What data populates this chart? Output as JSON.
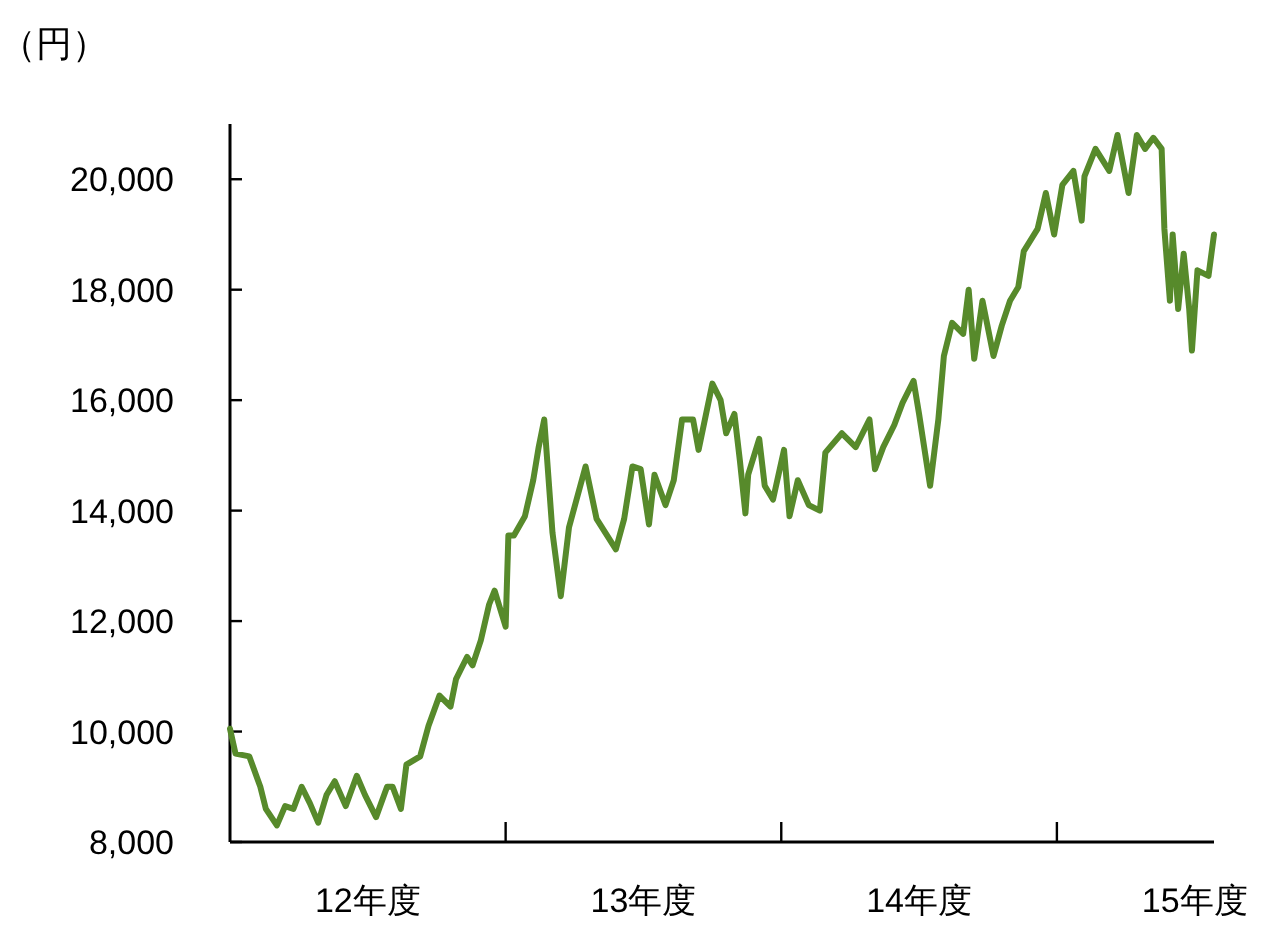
{
  "chart_data": {
    "type": "line",
    "ylabel": "（円）",
    "color": "#578a2b",
    "x": [
      12.0,
      12.02,
      12.07,
      12.11,
      12.13,
      12.17,
      12.2,
      12.23,
      12.26,
      12.29,
      12.32,
      12.35,
      12.38,
      12.42,
      12.46,
      12.49,
      12.53,
      12.57,
      12.59,
      12.62,
      12.64,
      12.69,
      12.72,
      12.76,
      12.8,
      12.82,
      12.86,
      12.88,
      12.91,
      12.94,
      12.96,
      13.0,
      13.01,
      13.03,
      13.07,
      13.1,
      13.12,
      13.14,
      13.17,
      13.2,
      13.23,
      13.29,
      13.33,
      13.4,
      13.43,
      13.46,
      13.49,
      13.52,
      13.54,
      13.58,
      13.61,
      13.64,
      13.68,
      13.7,
      13.75,
      13.78,
      13.8,
      13.83,
      13.85,
      13.87,
      13.88,
      13.92,
      13.94,
      13.97,
      14.01,
      14.03,
      14.06,
      14.1,
      14.14,
      14.16,
      14.22,
      14.27,
      14.32,
      14.34,
      14.37,
      14.41,
      14.44,
      14.48,
      14.5,
      14.54,
      14.57,
      14.59,
      14.62,
      14.66,
      14.68,
      14.7,
      14.73,
      14.77,
      14.8,
      14.83,
      14.86,
      14.88,
      14.93,
      14.96,
      14.99,
      15.02,
      15.06,
      15.09,
      15.1,
      15.14,
      15.19,
      15.22,
      15.26,
      15.29,
      15.32,
      15.35,
      15.38,
      15.39,
      15.41,
      15.42,
      15.44,
      15.46,
      15.48,
      15.49,
      15.51,
      15.55,
      15.57
    ],
    "values": [
      10050,
      9600,
      9550,
      9000,
      8600,
      8300,
      8650,
      8600,
      9000,
      8700,
      8350,
      8850,
      9100,
      8650,
      9200,
      8850,
      8450,
      9000,
      9000,
      8600,
      9400,
      9550,
      10100,
      10650,
      10450,
      10950,
      11350,
      11200,
      11650,
      12300,
      12550,
      11900,
      13550,
      13550,
      13900,
      14550,
      15150,
      15650,
      13600,
      12450,
      13700,
      14800,
      13850,
      13300,
      13850,
      14800,
      14750,
      13750,
      14650,
      14100,
      14550,
      15650,
      15650,
      15100,
      16300,
      16000,
      15400,
      15750,
      14900,
      13950,
      14650,
      15300,
      14450,
      14200,
      15100,
      13900,
      14550,
      14100,
      14000,
      15050,
      15400,
      15150,
      15650,
      14750,
      15150,
      15550,
      15950,
      16350,
      15750,
      14450,
      15650,
      16800,
      17400,
      17200,
      18000,
      16750,
      17800,
      16800,
      17350,
      17800,
      18050,
      18700,
      19100,
      19750,
      19000,
      19900,
      20150,
      19250,
      20050,
      20550,
      20150,
      20800,
      19750,
      20800,
      20550,
      20750,
      20550,
      19100,
      17800,
      19000,
      17650,
      18650,
      17650,
      16900,
      18350,
      18250,
      19000
    ],
    "xlim": [
      12,
      15.57
    ],
    "ylim": [
      8000,
      21000
    ],
    "xticks": [
      {
        "value": 12.5,
        "label": "12年度"
      },
      {
        "value": 13,
        "label": null
      },
      {
        "value": 13.5,
        "label": "13年度"
      },
      {
        "value": 14,
        "label": null
      },
      {
        "value": 14.5,
        "label": "14年度"
      },
      {
        "value": 15,
        "label": null
      },
      {
        "value": 15.5,
        "label": "15年度"
      }
    ],
    "yticks": [
      {
        "value": 8000,
        "label": "8,000"
      },
      {
        "value": 10000,
        "label": "10,000"
      },
      {
        "value": 12000,
        "label": "12,000"
      },
      {
        "value": 14000,
        "label": "14,000"
      },
      {
        "value": 16000,
        "label": "16,000"
      },
      {
        "value": 18000,
        "label": "18,000"
      },
      {
        "value": 20000,
        "label": "20,000"
      }
    ]
  }
}
